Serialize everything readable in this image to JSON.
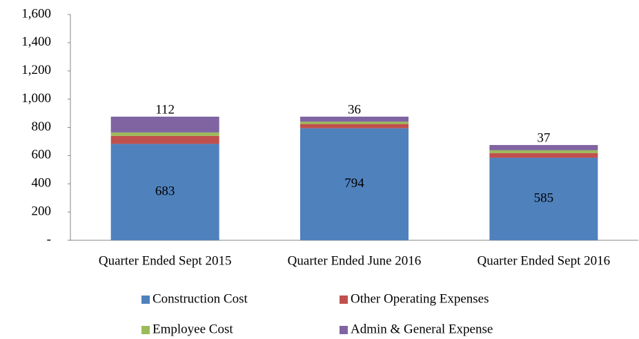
{
  "chart_data": {
    "type": "stacked_bar",
    "categories": [
      "Quarter Ended Sept 2015",
      "Quarter Ended June 2016",
      "Quarter Ended Sept 2016"
    ],
    "series": [
      {
        "name": "Construction Cost",
        "color": "#4f81bd",
        "values": [
          683,
          794,
          585
        ],
        "labels": true
      },
      {
        "name": "Other Operating Expenses",
        "color": "#c0504d",
        "values": [
          57,
          30,
          33
        ],
        "labels": false
      },
      {
        "name": "Employee Cost",
        "color": "#9bbb59",
        "values": [
          24,
          16,
          20
        ],
        "labels": false
      },
      {
        "name": "Admin & General Expense",
        "color": "#8064a2",
        "values": [
          112,
          36,
          37
        ],
        "labels": true
      }
    ],
    "ylim": [
      0,
      1600
    ],
    "yticks": [
      {
        "value": 0,
        "label": "-"
      },
      200,
      400,
      600,
      800,
      {
        "value": 1000,
        "label": "1,000"
      },
      {
        "value": 1200,
        "label": "1,200"
      },
      {
        "value": 1400,
        "label": "1,400"
      },
      {
        "value": 1600,
        "label": "1,600"
      }
    ],
    "grid": false,
    "legend": "bottom"
  }
}
